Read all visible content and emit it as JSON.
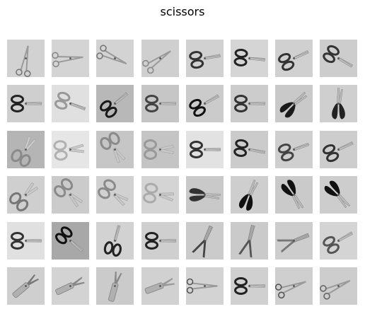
{
  "title": "scissors",
  "grid": {
    "rows": 6,
    "cols": 8,
    "items": [
      {
        "bg": "#d2d2d2",
        "angle": -80,
        "style": "forceps",
        "handle": "#777777"
      },
      {
        "bg": "#d4d4d4",
        "angle": -5,
        "style": "forceps",
        "handle": "#888888"
      },
      {
        "bg": "#d3d3d3",
        "angle": 25,
        "style": "forceps",
        "handle": "#777777"
      },
      {
        "bg": "#cfcfcf",
        "angle": -35,
        "style": "forceps",
        "handle": "#888888"
      },
      {
        "bg": "#d1d1d1",
        "angle": -10,
        "style": "scissors",
        "handle": "#333333"
      },
      {
        "bg": "#d5d5d5",
        "angle": 5,
        "style": "scissors",
        "handle": "#222222"
      },
      {
        "bg": "#d0d0d0",
        "angle": -25,
        "style": "scissors",
        "handle": "#333333"
      },
      {
        "bg": "#cdcdcd",
        "angle": 30,
        "style": "scissors",
        "handle": "#333333"
      },
      {
        "bg": "#cfcfcf",
        "angle": 0,
        "style": "scissors",
        "handle": "#222222"
      },
      {
        "bg": "#e0e0e0",
        "angle": 20,
        "style": "scissors",
        "handle": "#999999"
      },
      {
        "bg": "#b8b8b8",
        "angle": -40,
        "style": "scissors",
        "handle": "#1a1a1a"
      },
      {
        "bg": "#c6c6c6",
        "angle": 0,
        "style": "scissors",
        "handle": "#444444"
      },
      {
        "bg": "#cbcbcb",
        "angle": -30,
        "style": "scissors",
        "handle": "#111111"
      },
      {
        "bg": "#cccccc",
        "angle": 0,
        "style": "scissors",
        "handle": "#333333"
      },
      {
        "bg": "#c9c9c9",
        "angle": -45,
        "style": "kitchen",
        "handle": "#1a1a1a"
      },
      {
        "bg": "#cfcfcf",
        "angle": -90,
        "style": "kitchen",
        "handle": "#222222"
      },
      {
        "bg": "#b5b5b5",
        "angle": -60,
        "style": "safety",
        "handle": "#8a8a8a"
      },
      {
        "bg": "#e6e6e6",
        "angle": -5,
        "style": "safety",
        "handle": "#b0b0b0"
      },
      {
        "bg": "#c6c6c6",
        "angle": 60,
        "style": "safety",
        "handle": "#8a8a8a"
      },
      {
        "bg": "#c4c4c4",
        "angle": 0,
        "style": "safety",
        "handle": "#999999"
      },
      {
        "bg": "#e2e2e2",
        "angle": 0,
        "style": "scissors",
        "handle": "#333333"
      },
      {
        "bg": "#cbcbcb",
        "angle": 10,
        "style": "scissors",
        "handle": "#222222"
      },
      {
        "bg": "#cfcfcf",
        "angle": -20,
        "style": "scissors",
        "handle": "#444444"
      },
      {
        "bg": "#cdcdcd",
        "angle": -25,
        "style": "scissors",
        "handle": "#333333"
      },
      {
        "bg": "#cfcfcf",
        "angle": -45,
        "style": "safety",
        "handle": "#777777"
      },
      {
        "bg": "#cbcbcb",
        "angle": 45,
        "style": "safety",
        "handle": "#8a8a8a"
      },
      {
        "bg": "#d1d1d1",
        "angle": 35,
        "style": "safety",
        "handle": "#8a8a8a"
      },
      {
        "bg": "#d4d4d4",
        "angle": 10,
        "style": "safety",
        "handle": "#aaaaaa"
      },
      {
        "bg": "#c9c9c9",
        "angle": 0,
        "style": "shears",
        "handle": "#333333"
      },
      {
        "bg": "#cecece",
        "angle": -70,
        "style": "shears",
        "handle": "#111111"
      },
      {
        "bg": "#cacaca",
        "angle": 55,
        "style": "shears",
        "handle": "#111111"
      },
      {
        "bg": "#cdcdcd",
        "angle": 45,
        "style": "shears",
        "handle": "#111111"
      },
      {
        "bg": "#e0e0e0",
        "angle": 0,
        "style": "scissors",
        "handle": "#333333"
      },
      {
        "bg": "#a8a8a8",
        "angle": 40,
        "style": "scissors",
        "handle": "#111111"
      },
      {
        "bg": "#d2d2d2",
        "angle": -75,
        "style": "scissors",
        "handle": "#222222"
      },
      {
        "bg": "#cfcfcf",
        "angle": 0,
        "style": "scissors",
        "handle": "#222222"
      },
      {
        "bg": "#cbcbcb",
        "angle": -65,
        "style": "hedge",
        "handle": "#444444"
      },
      {
        "bg": "#cacaca",
        "angle": -75,
        "style": "hedge",
        "handle": "#555555"
      },
      {
        "bg": "#cdcdcd",
        "angle": -20,
        "style": "hedge",
        "handle": "#777777"
      },
      {
        "bg": "#d4d4d4",
        "angle": -30,
        "style": "scissors",
        "handle": "#555555"
      },
      {
        "bg": "#cfcfcf",
        "angle": -40,
        "style": "multitool",
        "handle": "#777777"
      },
      {
        "bg": "#d3d3d3",
        "angle": -25,
        "style": "multitool",
        "handle": "#888888"
      },
      {
        "bg": "#cbcbcb",
        "angle": -75,
        "style": "multitool",
        "handle": "#888888"
      },
      {
        "bg": "#d1d1d1",
        "angle": -20,
        "style": "multitool",
        "handle": "#999999"
      },
      {
        "bg": "#d3d3d3",
        "angle": 0,
        "style": "forceps",
        "handle": "#555555"
      },
      {
        "bg": "#d0d0d0",
        "angle": 0,
        "style": "scissors",
        "handle": "#222222"
      },
      {
        "bg": "#cfcfcf",
        "angle": -20,
        "style": "forceps",
        "handle": "#555555"
      },
      {
        "bg": "#cdcdcd",
        "angle": -25,
        "style": "forceps",
        "handle": "#666666"
      }
    ]
  }
}
